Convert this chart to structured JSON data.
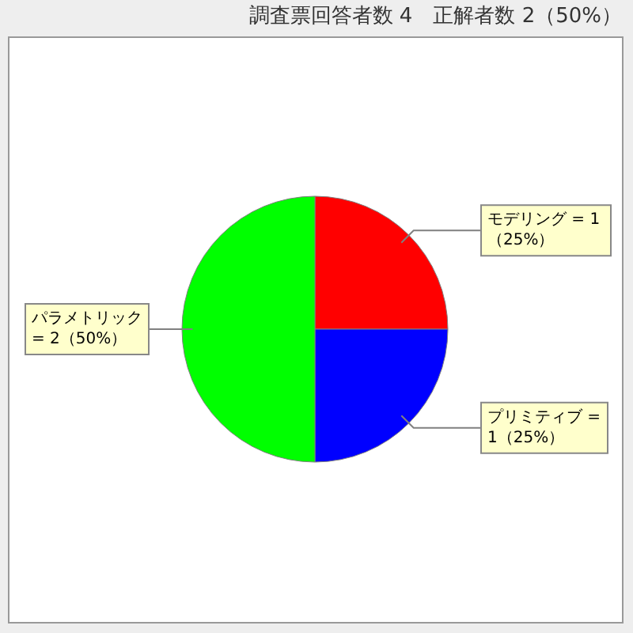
{
  "chart_data": {
    "type": "pie",
    "title": "調査票回答者数 4　正解者数 2（50%）",
    "categories": [
      "モデリング",
      "プリミティブ",
      "パラメトリック"
    ],
    "values": [
      1,
      1,
      2
    ],
    "colors": [
      "#ff0000",
      "#0000ff",
      "#00ff00"
    ],
    "value_labels": [
      "= 1（25%）",
      "= 1（25%）",
      "= 2（50%）"
    ]
  }
}
